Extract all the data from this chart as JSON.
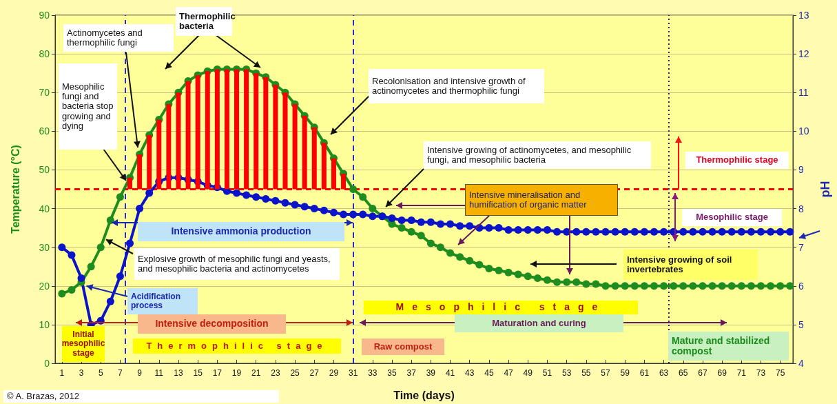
{
  "chart_data": {
    "type": "line",
    "xlabel": "Time (days)",
    "ylabel": "Temperature (°C)",
    "y2label": "pH",
    "x": [
      1,
      2,
      3,
      4,
      5,
      6,
      7,
      8,
      9,
      10,
      11,
      12,
      13,
      14,
      15,
      16,
      17,
      18,
      19,
      20,
      21,
      22,
      23,
      24,
      25,
      26,
      27,
      28,
      29,
      30,
      31,
      32,
      33,
      34,
      35,
      36,
      37,
      38,
      39,
      40,
      41,
      42,
      43,
      44,
      45,
      46,
      47,
      48,
      49,
      50,
      51,
      52,
      53,
      54,
      55,
      56,
      57,
      58,
      59,
      60,
      61,
      62,
      63,
      64,
      65,
      66,
      67,
      68,
      69,
      70,
      71,
      72,
      73,
      74,
      75,
      76
    ],
    "xlim": [
      0.3,
      76.3
    ],
    "xticks": [
      1,
      3,
      5,
      7,
      9,
      11,
      13,
      15,
      17,
      19,
      21,
      23,
      25,
      27,
      29,
      31,
      33,
      35,
      37,
      39,
      41,
      43,
      45,
      47,
      49,
      51,
      53,
      55,
      57,
      59,
      61,
      63,
      65,
      67,
      69,
      71,
      73,
      75
    ],
    "ylim": [
      0,
      90
    ],
    "yticks": [
      0,
      10,
      20,
      30,
      40,
      50,
      60,
      70,
      80,
      90
    ],
    "y2lim": [
      4,
      13
    ],
    "y2ticks": [
      4,
      5,
      6,
      7,
      8,
      9,
      10,
      11,
      12,
      13
    ],
    "grid": "y",
    "marker": "circle",
    "line_style": "solid",
    "series": [
      {
        "type": "bar",
        "color": "#ff0000",
        "x": [
          8,
          9,
          10,
          11,
          12,
          13,
          14,
          15,
          16,
          17,
          18,
          19,
          20,
          21,
          22,
          23,
          24,
          25,
          26,
          27,
          28,
          29,
          30
        ],
        "base": [
          45,
          45,
          45,
          45,
          45,
          45,
          45,
          45,
          45,
          45,
          45,
          45,
          45,
          45,
          45,
          45,
          45,
          45,
          45,
          45,
          45,
          45,
          45
        ],
        "values": [
          3,
          9,
          14,
          18,
          22,
          25,
          28,
          29.5,
          30.5,
          31,
          31,
          31,
          31,
          30,
          29,
          27,
          25,
          22,
          19,
          16,
          12,
          8,
          4
        ]
      },
      {
        "color": "#1e8c1e",
        "values": [
          18,
          19,
          21,
          25,
          30,
          37,
          43,
          48,
          54,
          59,
          63,
          67,
          70,
          73,
          74.5,
          75.5,
          76,
          76,
          76,
          76,
          75,
          74,
          72,
          70,
          67,
          64,
          61,
          57,
          53,
          49,
          45,
          43,
          40,
          38,
          36,
          35,
          34,
          33,
          31,
          30,
          28.5,
          27.5,
          26.5,
          25.5,
          24.5,
          24,
          23.5,
          23,
          22.5,
          22,
          21.5,
          21,
          21,
          21,
          20.5,
          20.5,
          20,
          20,
          20,
          20,
          20,
          20,
          20,
          20,
          20,
          20,
          20,
          20,
          20,
          20,
          20,
          20,
          20,
          20,
          20,
          20
        ]
      },
      {
        "axis": "y2",
        "color": "#0b14c8",
        "values": [
          7,
          6.8,
          6.2,
          5,
          5.1,
          5.6,
          6.25,
          7.1,
          8,
          8.4,
          8.7,
          8.8,
          8.8,
          8.75,
          8.7,
          8.6,
          8.55,
          8.45,
          8.4,
          8.35,
          8.3,
          8.25,
          8.2,
          8.15,
          8.1,
          8.05,
          8,
          7.95,
          7.9,
          7.85,
          7.85,
          7.85,
          7.8,
          7.8,
          7.75,
          7.7,
          7.7,
          7.65,
          7.65,
          7.6,
          7.6,
          7.55,
          7.55,
          7.5,
          7.5,
          7.5,
          7.45,
          7.45,
          7.45,
          7.45,
          7.45,
          7.4,
          7.4,
          7.4,
          7.4,
          7.4,
          7.4,
          7.4,
          7.4,
          7.4,
          7.4,
          7.4,
          7.4,
          7.4,
          7.4,
          7.4,
          7.4,
          7.4,
          7.4,
          7.4,
          7.4,
          7.4,
          7.4,
          7.4,
          7.4,
          7.4
        ]
      }
    ],
    "ref_lines": [
      {
        "axis": "y",
        "value": 45,
        "color": "#ff0000",
        "line_style": "dashed"
      },
      {
        "axis": "x",
        "value": 7.5,
        "color": "#2a2ad0",
        "line_style": "dashed"
      },
      {
        "axis": "x",
        "value": 31,
        "color": "#2a2ad0",
        "line_style": "dashed"
      },
      {
        "axis": "x",
        "value": 63.5,
        "color": "#2a2a70",
        "line_style": "dotted"
      }
    ],
    "annotations": [
      "Thermophilic bacteria",
      "Actinomycetes and thermophilic fungi",
      "Mesophilic fungi and bacteria stop growing and dying",
      "Recolonisation and intensive growth of actinomycetes and thermophilic fungi",
      "Intensive growing of actinomycetes, and mesophilic fungi, and mesophilic bacteria",
      "Intensive mineralisation and humification of organic matter",
      "Thermophilic stage",
      "Mesophilic stage",
      "Intensive ammonia production",
      {
        "text": "Explosive growth of mesophilic fungi and yeasts, and mesophilic bacteria and actinomycetes",
        "x": 5.5,
        "y": 32
      },
      "Intensive growing of soil invertebrates",
      {
        "text": "Acidification process",
        "x": 3.5,
        "y": 20
      },
      "Intensive decomposition",
      "Mesophilic stage",
      "Maturation and curing",
      "Initial mesophilic stage",
      "Thermophilic stage",
      "Raw compost",
      "Mature and stabilized compost",
      "© A. Brazas, 2012"
    ]
  }
}
